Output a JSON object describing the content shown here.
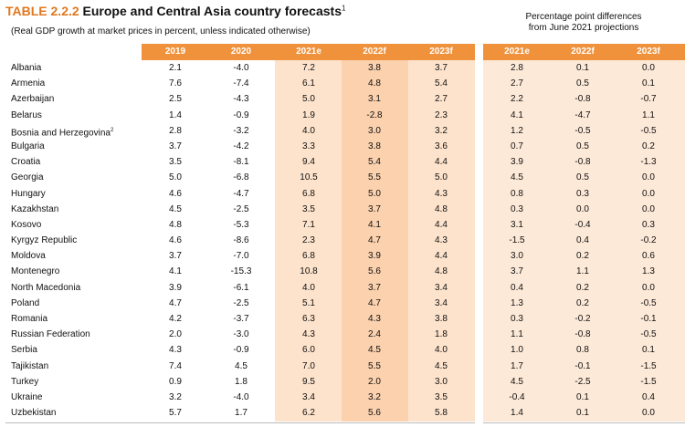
{
  "title": {
    "number": "TABLE 2.2.2",
    "text": "Europe and Central Asia country forecasts",
    "footnote": "1"
  },
  "subtitle": "(Real GDP growth at market prices in percent, unless indicated otherwise)",
  "diff_header": {
    "line1": "Percentage point differences",
    "line2": "from June 2021 projections"
  },
  "columns": [
    "2019",
    "2020",
    "2021e",
    "2022f",
    "2023f"
  ],
  "diff_columns": [
    "2021e",
    "2022f",
    "2023f"
  ],
  "colors": {
    "header_band": "#f0923c",
    "shade_light": "#fde3cc",
    "shade_mid": "#fbd1ae",
    "title_accent": "#e0781f"
  },
  "rows": [
    {
      "country": "Albania",
      "note": "",
      "v": [
        "2.1",
        "-4.0",
        "7.2",
        "3.8",
        "3.7"
      ],
      "d": [
        "2.8",
        "0.1",
        "0.0"
      ]
    },
    {
      "country": "Armenia",
      "note": "",
      "v": [
        "7.6",
        "-7.4",
        "6.1",
        "4.8",
        "5.4"
      ],
      "d": [
        "2.7",
        "0.5",
        "0.1"
      ]
    },
    {
      "country": "Azerbaijan",
      "note": "",
      "v": [
        "2.5",
        "-4.3",
        "5.0",
        "3.1",
        "2.7"
      ],
      "d": [
        "2.2",
        "-0.8",
        "-0.7"
      ]
    },
    {
      "country": "Belarus",
      "note": "",
      "v": [
        "1.4",
        "-0.9",
        "1.9",
        "-2.8",
        "2.3"
      ],
      "d": [
        "4.1",
        "-4.7",
        "1.1"
      ]
    },
    {
      "country": "Bosnia and Herzegovina",
      "note": "2",
      "v": [
        "2.8",
        "-3.2",
        "4.0",
        "3.0",
        "3.2"
      ],
      "d": [
        "1.2",
        "-0.5",
        "-0.5"
      ]
    },
    {
      "country": "Bulgaria",
      "note": "",
      "v": [
        "3.7",
        "-4.2",
        "3.3",
        "3.8",
        "3.6"
      ],
      "d": [
        "0.7",
        "0.5",
        "0.2"
      ]
    },
    {
      "country": "Croatia",
      "note": "",
      "v": [
        "3.5",
        "-8.1",
        "9.4",
        "5.4",
        "4.4"
      ],
      "d": [
        "3.9",
        "-0.8",
        "-1.3"
      ]
    },
    {
      "country": "Georgia",
      "note": "",
      "v": [
        "5.0",
        "-6.8",
        "10.5",
        "5.5",
        "5.0"
      ],
      "d": [
        "4.5",
        "0.5",
        "0.0"
      ]
    },
    {
      "country": "Hungary",
      "note": "",
      "v": [
        "4.6",
        "-4.7",
        "6.8",
        "5.0",
        "4.3"
      ],
      "d": [
        "0.8",
        "0.3",
        "0.0"
      ]
    },
    {
      "country": "Kazakhstan",
      "note": "",
      "v": [
        "4.5",
        "-2.5",
        "3.5",
        "3.7",
        "4.8"
      ],
      "d": [
        "0.3",
        "0.0",
        "0.0"
      ]
    },
    {
      "country": "Kosovo",
      "note": "",
      "v": [
        "4.8",
        "-5.3",
        "7.1",
        "4.1",
        "4.4"
      ],
      "d": [
        "3.1",
        "-0.4",
        "0.3"
      ]
    },
    {
      "country": "Kyrgyz Republic",
      "note": "",
      "v": [
        "4.6",
        "-8.6",
        "2.3",
        "4.7",
        "4.3"
      ],
      "d": [
        "-1.5",
        "0.4",
        "-0.2"
      ]
    },
    {
      "country": "Moldova",
      "note": "",
      "v": [
        "3.7",
        "-7.0",
        "6.8",
        "3.9",
        "4.4"
      ],
      "d": [
        "3.0",
        "0.2",
        "0.6"
      ]
    },
    {
      "country": "Montenegro",
      "note": "",
      "v": [
        "4.1",
        "-15.3",
        "10.8",
        "5.6",
        "4.8"
      ],
      "d": [
        "3.7",
        "1.1",
        "1.3"
      ]
    },
    {
      "country": "North Macedonia",
      "note": "",
      "v": [
        "3.9",
        "-6.1",
        "4.0",
        "3.7",
        "3.4"
      ],
      "d": [
        "0.4",
        "0.2",
        "0.0"
      ]
    },
    {
      "country": "Poland",
      "note": "",
      "v": [
        "4.7",
        "-2.5",
        "5.1",
        "4.7",
        "3.4"
      ],
      "d": [
        "1.3",
        "0.2",
        "-0.5"
      ]
    },
    {
      "country": "Romania",
      "note": "",
      "v": [
        "4.2",
        "-3.7",
        "6.3",
        "4.3",
        "3.8"
      ],
      "d": [
        "0.3",
        "-0.2",
        "-0.1"
      ]
    },
    {
      "country": "Russian Federation",
      "note": "",
      "v": [
        "2.0",
        "-3.0",
        "4.3",
        "2.4",
        "1.8"
      ],
      "d": [
        "1.1",
        "-0.8",
        "-0.5"
      ]
    },
    {
      "country": "Serbia",
      "note": "",
      "v": [
        "4.3",
        "-0.9",
        "6.0",
        "4.5",
        "4.0"
      ],
      "d": [
        "1.0",
        "0.8",
        "0.1"
      ]
    },
    {
      "country": "Tajikistan",
      "note": "",
      "v": [
        "7.4",
        "4.5",
        "7.0",
        "5.5",
        "4.5"
      ],
      "d": [
        "1.7",
        "-0.1",
        "-1.5"
      ]
    },
    {
      "country": "Turkey",
      "note": "",
      "v": [
        "0.9",
        "1.8",
        "9.5",
        "2.0",
        "3.0"
      ],
      "d": [
        "4.5",
        "-2.5",
        "-1.5"
      ]
    },
    {
      "country": "Ukraine",
      "note": "",
      "v": [
        "3.2",
        "-4.0",
        "3.4",
        "3.2",
        "3.5"
      ],
      "d": [
        "-0.4",
        "0.1",
        "0.4"
      ]
    },
    {
      "country": "Uzbekistan",
      "note": "",
      "v": [
        "5.7",
        "1.7",
        "6.2",
        "5.6",
        "5.8"
      ],
      "d": [
        "1.4",
        "0.1",
        "0.0"
      ]
    }
  ]
}
